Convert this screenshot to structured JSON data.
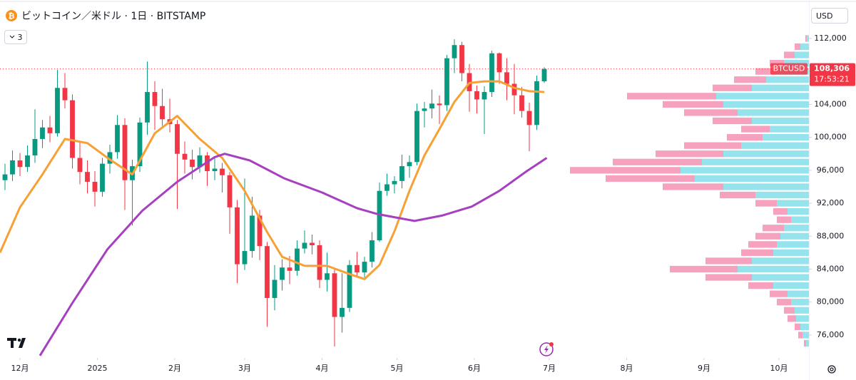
{
  "ui": {
    "currency": "USD",
    "collapsed_indicators": "3"
  },
  "chart_data": {
    "type": "candlestick",
    "title": "ビットコイン／米ドル · 1日 · BITSTAMP",
    "xlim": [
      -8,
      316
    ],
    "ylim": [
      73400,
      116670
    ],
    "grid": false,
    "xticks": [
      {
        "value": 0,
        "label": "12月"
      },
      {
        "value": 31,
        "label": "2025"
      },
      {
        "value": 62,
        "label": "2月"
      },
      {
        "value": 90,
        "label": "3月"
      },
      {
        "value": 121,
        "label": "4月"
      },
      {
        "value": 151,
        "label": "5月"
      },
      {
        "value": 182,
        "label": "6月"
      },
      {
        "value": 212,
        "label": "7月"
      },
      {
        "value": 243,
        "label": "8月"
      },
      {
        "value": 274,
        "label": "9月"
      },
      {
        "value": 304,
        "label": "10月"
      }
    ],
    "yticks": [
      {
        "value": 76000,
        "label": "76,000"
      },
      {
        "value": 80000,
        "label": "80,000"
      },
      {
        "value": 84000,
        "label": "84,000"
      },
      {
        "value": 88000,
        "label": "88,000"
      },
      {
        "value": 92000,
        "label": "92,000"
      },
      {
        "value": 96000,
        "label": "96,000"
      },
      {
        "value": 100000,
        "label": "100,000"
      },
      {
        "value": 104000,
        "label": "104,000"
      },
      {
        "value": 108000,
        "label": "108,000"
      },
      {
        "value": 112000,
        "label": "112,000"
      }
    ],
    "candles": {
      "up_color": "#089981",
      "down_color": "#f23645",
      "x": [
        -6,
        -3,
        0,
        3,
        6,
        9,
        12,
        15,
        18,
        21,
        24,
        27,
        30,
        33,
        36,
        39,
        42,
        45,
        48,
        51,
        54,
        57,
        60,
        63,
        66,
        69,
        72,
        75,
        78,
        81,
        84,
        87,
        90,
        93,
        96,
        99,
        102,
        105,
        108,
        111,
        114,
        117,
        120,
        123,
        126,
        129,
        132,
        135,
        138,
        141,
        144,
        147,
        150,
        153,
        156,
        159,
        162,
        165,
        168,
        171,
        174,
        177,
        180,
        183,
        186,
        189,
        192,
        195,
        198,
        201,
        204,
        207,
        210
      ],
      "ohlc": [
        [
          94800,
          96800,
          93600,
          95500
        ],
        [
          95500,
          98400,
          94700,
          97200
        ],
        [
          97200,
          98100,
          95300,
          96400
        ],
        [
          96400,
          99000,
          95800,
          97800
        ],
        [
          97800,
          103400,
          96900,
          99800
        ],
        [
          99800,
          102100,
          98700,
          101200
        ],
        [
          101200,
          102600,
          99400,
          100500
        ],
        [
          100500,
          108200,
          100100,
          106000
        ],
        [
          106000,
          107800,
          103500,
          104500
        ],
        [
          104500,
          105200,
          96200,
          97500
        ],
        [
          97500,
          99400,
          94300,
          95800
        ],
        [
          95800,
          97200,
          93200,
          94600
        ],
        [
          94600,
          95900,
          91600,
          93400
        ],
        [
          93400,
          97500,
          92800,
          96800
        ],
        [
          96800,
          99100,
          95600,
          98200
        ],
        [
          98200,
          102700,
          97400,
          101500
        ],
        [
          101500,
          102300,
          91200,
          94800
        ],
        [
          94800,
          97300,
          89300,
          96500
        ],
        [
          96500,
          102400,
          95800,
          101800
        ],
        [
          101800,
          109200,
          100300,
          105500
        ],
        [
          105500,
          106800,
          100900,
          103800
        ],
        [
          103800,
          105900,
          101400,
          102200
        ],
        [
          102200,
          104700,
          100600,
          101600
        ],
        [
          101600,
          102100,
          91300,
          98000
        ],
        [
          98000,
          99500,
          95600,
          97300
        ],
        [
          97300,
          98500,
          94900,
          96400
        ],
        [
          96400,
          98800,
          95700,
          97800
        ],
        [
          97800,
          98200,
          94100,
          95900
        ],
        [
          95900,
          97500,
          94800,
          96200
        ],
        [
          96200,
          96900,
          93300,
          95400
        ],
        [
          95400,
          95800,
          88300,
          91500
        ],
        [
          91500,
          92400,
          82300,
          84600
        ],
        [
          84600,
          95000,
          83900,
          86200
        ],
        [
          86200,
          92800,
          85400,
          90500
        ],
        [
          90500,
          91200,
          85100,
          86800
        ],
        [
          86800,
          87300,
          77000,
          80500
        ],
        [
          80500,
          84500,
          79000,
          82700
        ],
        [
          82700,
          85200,
          81400,
          84200
        ],
        [
          84200,
          85600,
          82200,
          83800
        ],
        [
          83800,
          87500,
          83200,
          86500
        ],
        [
          86500,
          88700,
          85900,
          87200
        ],
        [
          87200,
          88200,
          85800,
          86900
        ],
        [
          86900,
          87500,
          81700,
          82700
        ],
        [
          82700,
          86000,
          81300,
          83500
        ],
        [
          83500,
          84100,
          74600,
          78200
        ],
        [
          78200,
          83500,
          76300,
          79300
        ],
        [
          79300,
          85100,
          78800,
          84500
        ],
        [
          84500,
          86100,
          83100,
          83600
        ],
        [
          83600,
          85500,
          83000,
          84900
        ],
        [
          84900,
          88500,
          84200,
          87500
        ],
        [
          87500,
          94500,
          87300,
          93500
        ],
        [
          93500,
          95600,
          92900,
          94300
        ],
        [
          94300,
          95300,
          93200,
          94700
        ],
        [
          94700,
          97900,
          93800,
          96500
        ],
        [
          96500,
          97800,
          95100,
          97000
        ],
        [
          97000,
          104100,
          96600,
          103200
        ],
        [
          103200,
          104300,
          101200,
          103500
        ],
        [
          103500,
          105800,
          102300,
          104100
        ],
        [
          104100,
          105100,
          101600,
          103900
        ],
        [
          103900,
          110000,
          103200,
          109600
        ],
        [
          109600,
          111900,
          107800,
          111200
        ],
        [
          111200,
          111600,
          106800,
          107800
        ],
        [
          107800,
          108900,
          103100,
          105600
        ],
        [
          105600,
          106300,
          102900,
          104600
        ],
        [
          104600,
          106200,
          100400,
          105500
        ],
        [
          105500,
          110500,
          104900,
          110200
        ],
        [
          110200,
          110300,
          106500,
          107900
        ],
        [
          107900,
          109600,
          104500,
          106500
        ],
        [
          106500,
          108900,
          102800,
          105100
        ],
        [
          105100,
          106100,
          102400,
          103200
        ],
        [
          103200,
          104200,
          98300,
          101500
        ],
        [
          101500,
          107500,
          100900,
          106800
        ],
        [
          106800,
          108500,
          106600,
          108306
        ]
      ]
    },
    "moving_averages": [
      {
        "color": "#f7a035",
        "x": [
          -8,
          0,
          9,
          18,
          27,
          36,
          45,
          54,
          63,
          72,
          81,
          90,
          99,
          105,
          114,
          123,
          132,
          138,
          144,
          150,
          156,
          162,
          168,
          174,
          180,
          186,
          192,
          198,
          204,
          210
        ],
        "values": [
          86000,
          91500,
          95500,
          99800,
          99300,
          97300,
          95500,
          100500,
          102600,
          99800,
          97500,
          93500,
          88500,
          85500,
          84400,
          84400,
          83400,
          82800,
          84500,
          88600,
          93500,
          97800,
          101000,
          104300,
          106600,
          106800,
          106800,
          106000,
          105600,
          105500
        ]
      },
      {
        "color": "#a63fc0",
        "x": [
          8,
          21,
          35,
          49,
          63,
          78,
          82,
          92,
          106,
          121,
          135,
          143,
          158,
          169,
          181,
          192,
          203,
          211
        ],
        "values": [
          73500,
          79900,
          86400,
          91100,
          94600,
          97600,
          98000,
          97200,
          95000,
          93300,
          91400,
          90700,
          89850,
          90500,
          91600,
          93500,
          95900,
          97500
        ]
      }
    ],
    "volume_profile": {
      "up_color": "#4dd0e1",
      "down_color": "#f06292",
      "prices": [
        112000,
        111000,
        110000,
        109000,
        108000,
        107000,
        106000,
        105000,
        104000,
        103000,
        102000,
        101000,
        100000,
        99000,
        98000,
        97000,
        96000,
        95000,
        94000,
        93000,
        92000,
        91000,
        90000,
        89000,
        88000,
        87000,
        86000,
        85000,
        84000,
        83000,
        82000,
        81000,
        80000,
        79000,
        78000,
        77000,
        76000,
        75000
      ],
      "up": [
        3,
        12,
        20,
        35,
        45,
        60,
        80,
        130,
        120,
        100,
        80,
        55,
        65,
        95,
        120,
        150,
        180,
        160,
        120,
        75,
        45,
        30,
        25,
        35,
        40,
        45,
        50,
        80,
        100,
        80,
        50,
        30,
        25,
        20,
        18,
        12,
        9,
        4
      ],
      "down": [
        2,
        8,
        15,
        20,
        30,
        45,
        55,
        125,
        85,
        75,
        55,
        40,
        50,
        80,
        95,
        125,
        155,
        125,
        85,
        50,
        30,
        20,
        20,
        30,
        35,
        40,
        45,
        65,
        95,
        65,
        35,
        25,
        20,
        15,
        12,
        8,
        6,
        3
      ]
    },
    "price_line": {
      "symbol": "BTCUSD",
      "value": 108306,
      "value_label": "108,306",
      "countdown": "17:53:21",
      "color": "#f23645"
    }
  }
}
